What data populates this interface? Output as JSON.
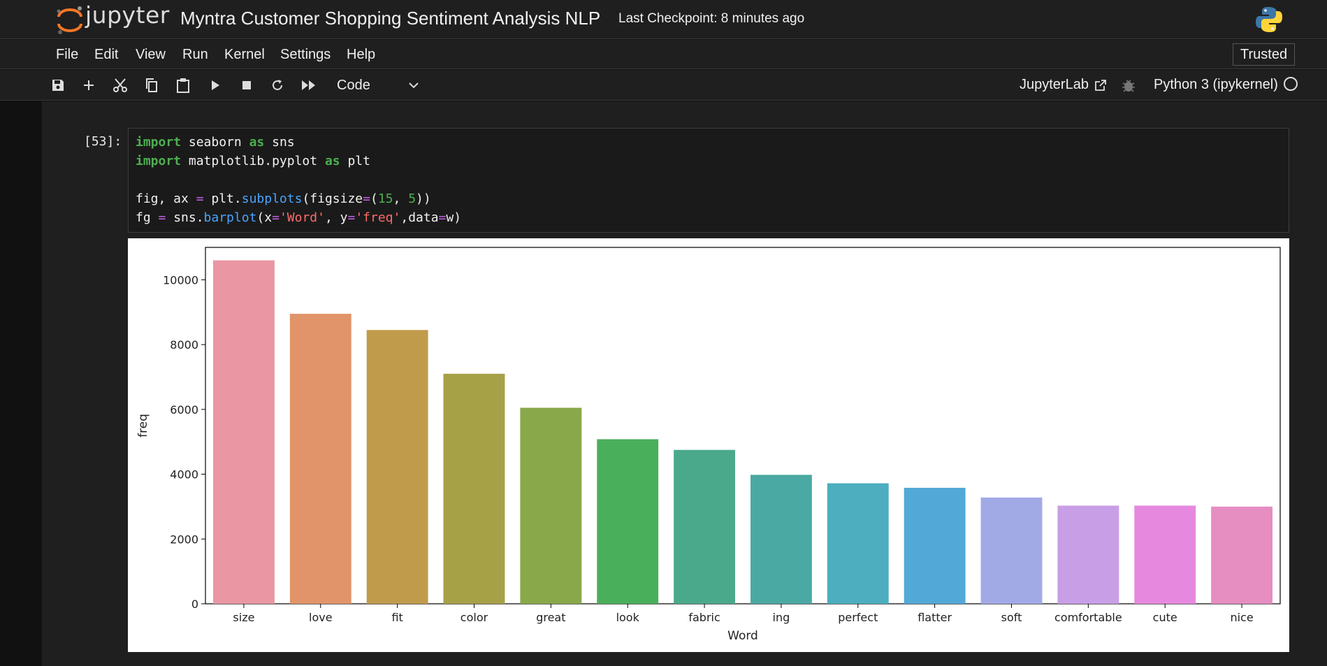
{
  "header": {
    "logo_text": "jupyter",
    "notebook_title": "Myntra Customer Shopping Sentiment Analysis NLP",
    "checkpoint": "Last Checkpoint: 8 minutes ago"
  },
  "menu": {
    "items": [
      "File",
      "Edit",
      "View",
      "Run",
      "Kernel",
      "Settings",
      "Help"
    ],
    "trusted": "Trusted"
  },
  "toolbar": {
    "cell_type": "Code",
    "jupyterlab_link": "JupyterLab",
    "kernel": "Python 3 (ipykernel)"
  },
  "cell": {
    "prompt": "[53]:",
    "code": {
      "l1": {
        "kw1": "import",
        "mod": " seaborn ",
        "kw2": "as",
        "alias": " sns"
      },
      "l2": {
        "kw1": "import",
        "mod": " matplotlib.pyplot ",
        "kw2": "as",
        "alias": " plt"
      },
      "l4": {
        "a": "fig, ax ",
        "eq": "=",
        "b": " plt.",
        "fn": "subplots",
        "c": "(figsize",
        "eq2": "=",
        "d": "(",
        "n1": "15",
        "e": ", ",
        "n2": "5",
        "f": "))"
      },
      "l5": {
        "a": "fg ",
        "eq": "=",
        "b": " sns.",
        "fn": "barplot",
        "c": "(x",
        "eq2": "=",
        "s1": "'Word'",
        "d": ", y",
        "eq3": "=",
        "s2": "'freq'",
        "e": ",data",
        "eq4": "=",
        "f": "w)"
      }
    }
  },
  "chart_data": {
    "type": "bar",
    "categories": [
      "size",
      "love",
      "fit",
      "color",
      "great",
      "look",
      "fabric",
      "ing",
      "perfect",
      "flatter",
      "soft",
      "comfortable",
      "cute",
      "nice"
    ],
    "values": [
      10600,
      8950,
      8450,
      7100,
      6050,
      5080,
      4750,
      3980,
      3720,
      3580,
      3280,
      3030,
      3030,
      3000
    ],
    "colors": [
      "#ea96a3",
      "#e19469",
      "#c19b4c",
      "#a6a046",
      "#88a84a",
      "#4aaf5a",
      "#4ba98b",
      "#4aa9a3",
      "#4caebe",
      "#52a9d7",
      "#a2aae6",
      "#c89fe6",
      "#e788df",
      "#e68dc2"
    ],
    "title": "",
    "xlabel": "Word",
    "ylabel": "freq",
    "ylim": [
      0,
      11000
    ],
    "yticks": [
      0,
      2000,
      4000,
      6000,
      8000,
      10000
    ],
    "grid": false
  }
}
